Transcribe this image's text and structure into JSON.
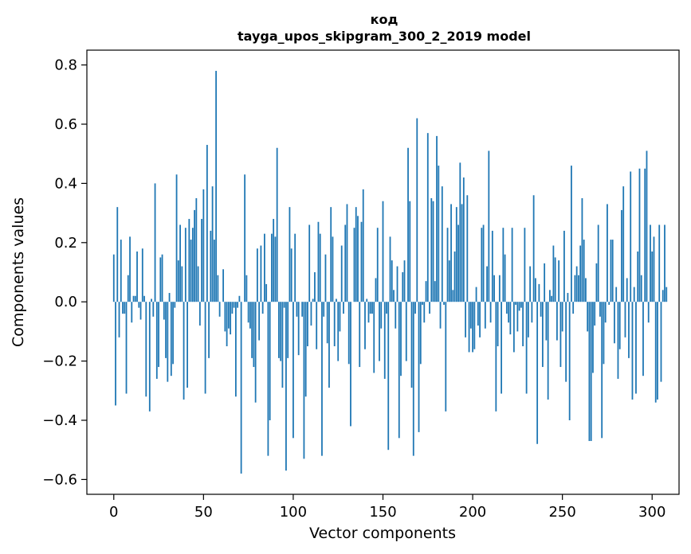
{
  "chart_data": {
    "type": "bar",
    "title_line1": "код",
    "title_line2": "tayga_upos_skipgram_300_2_2019 model",
    "xlabel": "Vector components",
    "ylabel": "Components values",
    "xlim": [
      -15,
      315
    ],
    "ylim": [
      -0.65,
      0.85
    ],
    "xticks": [
      0,
      50,
      100,
      150,
      200,
      250,
      300
    ],
    "xtick_labels": [
      "0",
      "50",
      "100",
      "150",
      "200",
      "250",
      "300"
    ],
    "yticks": [
      -0.6,
      -0.4,
      -0.2,
      0.0,
      0.2,
      0.4,
      0.6,
      0.8
    ],
    "ytick_labels": [
      "−0.6",
      "−0.4",
      "−0.2",
      "0.0",
      "0.2",
      "0.4",
      "0.6",
      "0.8"
    ],
    "bar_color": "#1f77b4",
    "grid": false,
    "values": [
      0.16,
      -0.35,
      0.32,
      -0.12,
      0.21,
      -0.04,
      -0.04,
      -0.31,
      0.09,
      0.22,
      -0.07,
      0.02,
      0.02,
      0.17,
      -0.02,
      -0.06,
      0.18,
      0.02,
      -0.32,
      0.0,
      -0.37,
      0.01,
      -0.05,
      0.4,
      -0.26,
      -0.22,
      0.15,
      0.16,
      -0.06,
      -0.19,
      -0.27,
      0.03,
      -0.25,
      -0.21,
      -0.02,
      0.43,
      0.14,
      0.26,
      0.12,
      -0.33,
      0.25,
      -0.29,
      0.28,
      0.21,
      0.25,
      0.31,
      0.35,
      0.12,
      -0.08,
      0.28,
      0.38,
      -0.31,
      0.53,
      -0.19,
      0.24,
      0.39,
      0.21,
      0.78,
      0.09,
      -0.05,
      0.0,
      0.11,
      -0.1,
      -0.15,
      -0.09,
      -0.11,
      -0.04,
      -0.02,
      -0.32,
      -0.02,
      0.02,
      -0.58,
      0.0,
      0.43,
      0.09,
      -0.07,
      -0.09,
      -0.19,
      -0.22,
      -0.34,
      0.18,
      -0.13,
      0.19,
      -0.04,
      0.23,
      0.06,
      -0.52,
      -0.4,
      0.23,
      0.28,
      0.22,
      0.52,
      -0.19,
      -0.2,
      -0.29,
      -0.02,
      -0.57,
      -0.19,
      0.32,
      0.18,
      -0.46,
      0.23,
      -0.05,
      -0.18,
      0.0,
      -0.05,
      -0.53,
      -0.32,
      -0.15,
      0.26,
      -0.08,
      0.01,
      0.1,
      -0.16,
      0.27,
      0.23,
      -0.52,
      -0.05,
      0.16,
      -0.14,
      -0.29,
      0.32,
      0.22,
      -0.15,
      0.01,
      -0.2,
      -0.1,
      0.19,
      -0.04,
      0.26,
      0.33,
      -0.21,
      -0.42,
      0.0,
      0.25,
      0.32,
      0.29,
      -0.22,
      0.27,
      0.38,
      -0.16,
      0.01,
      -0.07,
      -0.04,
      -0.04,
      -0.24,
      0.08,
      0.25,
      -0.2,
      -0.09,
      0.34,
      -0.26,
      -0.04,
      -0.5,
      0.22,
      0.14,
      0.04,
      -0.09,
      0.12,
      -0.46,
      -0.25,
      0.1,
      0.14,
      -0.2,
      0.52,
      0.34,
      -0.29,
      -0.52,
      -0.04,
      0.62,
      -0.44,
      -0.21,
      -0.01,
      -0.07,
      0.07,
      0.57,
      -0.04,
      0.35,
      0.34,
      0.07,
      0.56,
      0.46,
      -0.09,
      0.39,
      -0.01,
      -0.37,
      0.25,
      0.14,
      0.33,
      0.04,
      0.17,
      0.32,
      0.26,
      0.47,
      0.33,
      0.42,
      -0.12,
      0.36,
      -0.17,
      -0.09,
      -0.17,
      -0.16,
      0.05,
      -0.08,
      -0.12,
      0.25,
      0.26,
      -0.09,
      0.12,
      0.51,
      -0.07,
      0.24,
      0.09,
      -0.37,
      -0.15,
      0.09,
      -0.31,
      0.25,
      0.16,
      -0.04,
      -0.07,
      -0.11,
      0.25,
      -0.17,
      -0.01,
      -0.1,
      -0.03,
      -0.02,
      -0.15,
      0.25,
      -0.31,
      -0.12,
      0.12,
      -0.07,
      0.36,
      0.08,
      -0.48,
      0.06,
      -0.05,
      -0.22,
      0.13,
      -0.13,
      -0.33,
      0.04,
      0.02,
      0.19,
      0.15,
      -0.13,
      0.14,
      -0.22,
      -0.1,
      0.24,
      -0.27,
      0.03,
      -0.4,
      0.46,
      -0.04,
      0.09,
      0.12,
      0.09,
      0.19,
      0.35,
      0.21,
      0.08,
      -0.1,
      -0.47,
      -0.47,
      -0.24,
      -0.08,
      0.13,
      0.26,
      -0.05,
      -0.46,
      -0.21,
      -0.07,
      0.33,
      -0.01,
      0.21,
      0.21,
      -0.14,
      0.05,
      -0.26,
      -0.16,
      0.31,
      0.39,
      -0.12,
      0.08,
      -0.19,
      0.44,
      -0.33,
      0.05,
      -0.31,
      0.17,
      0.45,
      0.09,
      -0.25,
      0.45,
      0.51,
      -0.07,
      0.26,
      0.17,
      0.22,
      -0.34,
      -0.33,
      0.26,
      -0.27,
      0.04,
      0.26,
      0.05
    ]
  }
}
